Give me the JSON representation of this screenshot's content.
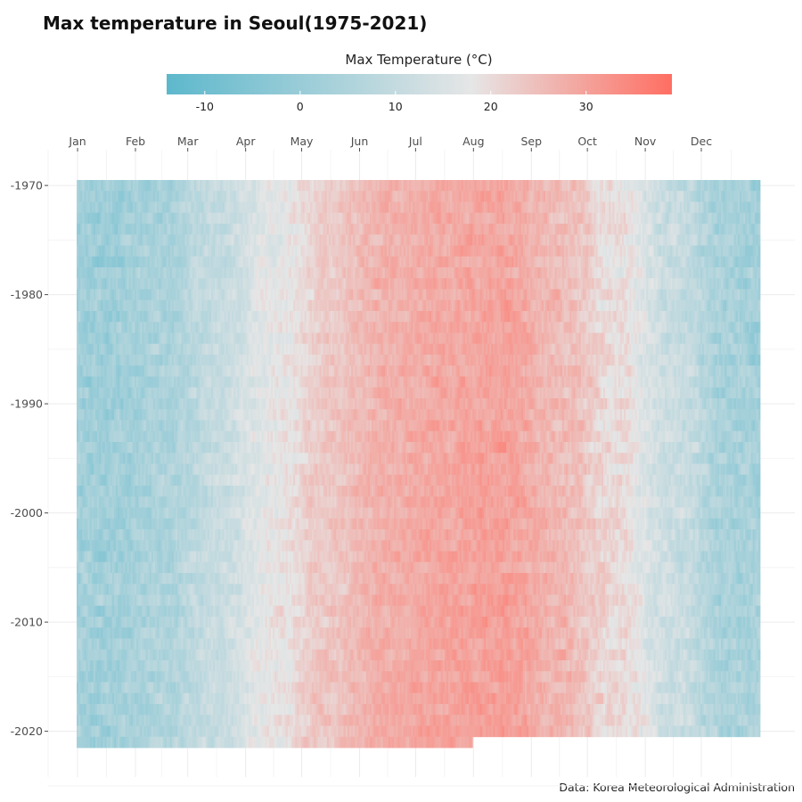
{
  "title": "Max temperature in Seoul(1975-2021)",
  "caption": "Data: Korea Meteorological Administration",
  "chart_data": {
    "type": "heatmap",
    "x": {
      "label": "",
      "tick_labels": [
        "Jan",
        "Feb",
        "Mar",
        "Apr",
        "May",
        "Jun",
        "Jul",
        "Aug",
        "Sep",
        "Oct",
        "Nov",
        "Dec"
      ],
      "ticks_day_of_year": [
        1,
        32,
        60,
        91,
        121,
        152,
        182,
        213,
        244,
        274,
        305,
        335
      ],
      "range_day_of_year": [
        1,
        366
      ]
    },
    "y": {
      "label": "",
      "tick_labels": [
        "-1970",
        "-1980",
        "-1990",
        "-2000",
        "-2010",
        "-2020"
      ],
      "tick_values": [
        1970,
        1980,
        1990,
        2000,
        2010,
        2020
      ],
      "range": [
        1970,
        2021
      ],
      "reversed": true
    },
    "fill": {
      "label": "Max Temperature (°C)",
      "tick_labels": [
        "-10",
        "0",
        "10",
        "20",
        "30"
      ],
      "tick_values": [
        -10,
        0,
        10,
        20,
        30
      ],
      "range": [
        -14,
        39
      ],
      "low_color": "#5db8cc",
      "mid_color": "#e6e6e6",
      "high_color": "#ff6e62",
      "midpoint": 18
    },
    "last_year_partial_through": "Jul",
    "monthly_mean_max_temp": {
      "Jan": 1.5,
      "Feb": 4.5,
      "Mar": 10.5,
      "Apr": 18,
      "May": 23.5,
      "Jun": 27.5,
      "Jul": 29,
      "Aug": 30,
      "Sep": 26,
      "Oct": 20,
      "Nov": 11.5,
      "Dec": 3.5
    },
    "legend_position": "top",
    "grid": true
  }
}
